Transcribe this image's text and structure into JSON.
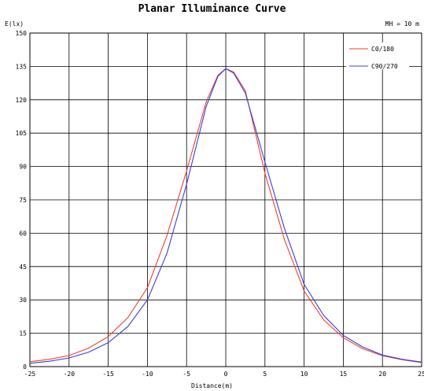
{
  "chart_data": {
    "type": "line",
    "title": "Planar Illuminance Curve",
    "ylabel": "E(lx)",
    "xlabel": "Distance(m)",
    "annotation": "MH = 10 m",
    "xlim": [
      -25,
      25
    ],
    "ylim": [
      0,
      150
    ],
    "x_ticks": [
      -25,
      -20,
      -15,
      -10,
      -5,
      0,
      5,
      10,
      15,
      20,
      25
    ],
    "y_ticks": [
      0,
      15,
      30,
      45,
      60,
      75,
      90,
      105,
      120,
      135,
      150
    ],
    "grid": true,
    "legend_position": "top-right",
    "x": [
      -25,
      -22.5,
      -20,
      -17.5,
      -15,
      -12.5,
      -10,
      -7.5,
      -5,
      -2.5,
      -1,
      0,
      1,
      2.5,
      5,
      7.5,
      10,
      12.5,
      15,
      17.5,
      20,
      22.5,
      25
    ],
    "series": [
      {
        "name": "C0/180",
        "color": "#e8442c",
        "values": [
          2.2,
          3.3,
          5,
          8.3,
          13.5,
          22,
          35.5,
          59,
          88,
          119,
          131,
          134,
          132.5,
          124,
          87,
          57,
          34,
          21,
          13,
          8,
          4.9,
          3.1,
          1.8
        ]
      },
      {
        "name": "C90/270",
        "color": "#3c3cdc",
        "values": [
          1.5,
          2.4,
          3.9,
          6.5,
          10.8,
          18,
          30,
          51,
          82,
          117,
          130.5,
          134,
          132,
          123,
          92,
          62,
          37,
          23,
          14,
          8.8,
          5.2,
          3.3,
          2
        ]
      }
    ]
  }
}
